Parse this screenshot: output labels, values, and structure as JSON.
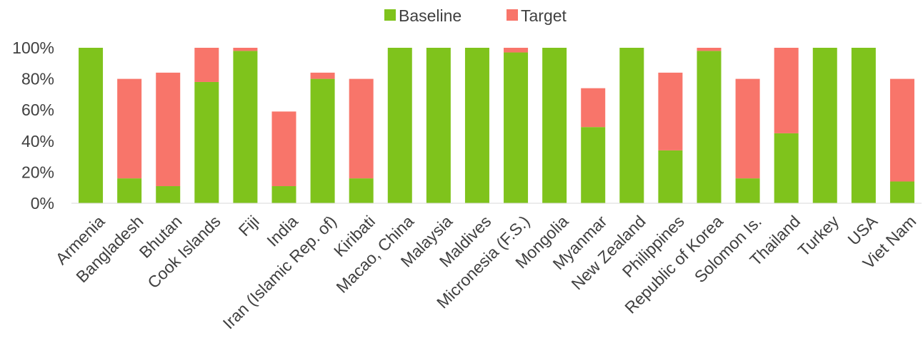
{
  "chart_data": {
    "type": "bar",
    "stacked": true,
    "categories": [
      "Armenia",
      "Bangladesh",
      "Bhutan",
      "Cook Islands",
      "Fiji",
      "India",
      "Iran (Islamic Rep. of)",
      "Kiribati",
      "Macao, China",
      "Malaysia",
      "Maldives",
      "Micronesia (F.S.)",
      "Mongolia",
      "Myanmar",
      "New Zealand",
      "Philippines",
      "Republic of Korea",
      "Solomon Is.",
      "Thailand",
      "Turkey",
      "USA",
      "Viet Nam"
    ],
    "series": [
      {
        "name": "Baseline",
        "color": "#7fc31c",
        "values": [
          100,
          16,
          11,
          78,
          98,
          11,
          80,
          16,
          100,
          100,
          100,
          97,
          100,
          49,
          100,
          34,
          98,
          16,
          45,
          100,
          100,
          14
        ]
      },
      {
        "name": "Target",
        "color": "#f8756a",
        "values": [
          0,
          64,
          73,
          22,
          2,
          48,
          4,
          64,
          0,
          0,
          0,
          3,
          0,
          25,
          0,
          50,
          2,
          64,
          55,
          0,
          0,
          66
        ]
      }
    ],
    "yticks": [
      "0%",
      "20%",
      "40%",
      "60%",
      "80%",
      "100%"
    ],
    "ylim": [
      0,
      100
    ],
    "legend_position": "top-center",
    "grid": false,
    "title": "",
    "xlabel": "",
    "ylabel": ""
  }
}
